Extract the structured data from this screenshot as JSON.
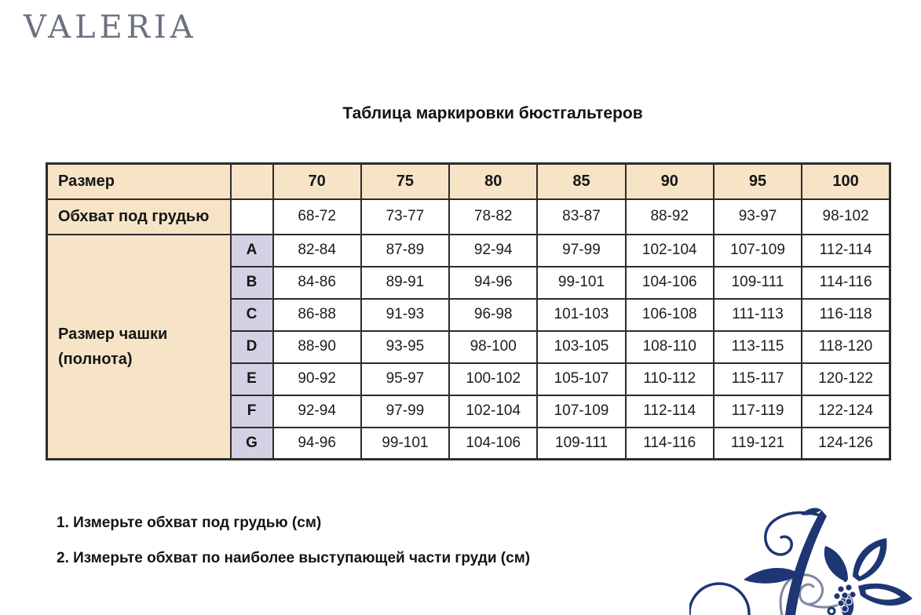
{
  "brand": {
    "logo_text": "VALERIA"
  },
  "title": "Таблица маркировки бюстгальтеров",
  "table": {
    "row_size": {
      "label": "Размер",
      "values": [
        "70",
        "75",
        "80",
        "85",
        "90",
        "95",
        "100"
      ]
    },
    "row_underbust": {
      "label": "Обхват под грудью",
      "values": [
        "68-72",
        "73-77",
        "78-82",
        "83-87",
        "88-92",
        "93-97",
        "98-102"
      ]
    },
    "cup_section": {
      "label_line1": "Размер чашки",
      "label_line2": "(полнота)",
      "rows": [
        {
          "cup": "A",
          "values": [
            "82-84",
            "87-89",
            "92-94",
            "97-99",
            "102-104",
            "107-109",
            "112-114"
          ]
        },
        {
          "cup": "B",
          "values": [
            "84-86",
            "89-91",
            "94-96",
            "99-101",
            "104-106",
            "109-111",
            "114-116"
          ]
        },
        {
          "cup": "C",
          "values": [
            "86-88",
            "91-93",
            "96-98",
            "101-103",
            "106-108",
            "111-113",
            "116-118"
          ]
        },
        {
          "cup": "D",
          "values": [
            "88-90",
            "93-95",
            "98-100",
            "103-105",
            "108-110",
            "113-115",
            "118-120"
          ]
        },
        {
          "cup": "E",
          "values": [
            "90-92",
            "95-97",
            "100-102",
            "105-107",
            "110-112",
            "115-117",
            "120-122"
          ]
        },
        {
          "cup": "F",
          "values": [
            "92-94",
            "97-99",
            "102-104",
            "107-109",
            "112-114",
            "117-119",
            "122-124"
          ]
        },
        {
          "cup": "G",
          "values": [
            "94-96",
            "99-101",
            "104-106",
            "109-111",
            "114-116",
            "119-121",
            "124-126"
          ]
        }
      ]
    }
  },
  "instructions": {
    "items": [
      "1. Измерьте обхват под грудью (см)",
      "2. Измерьте обхват по наиболее выступающей части груди (см)"
    ]
  },
  "icons": {
    "ornament": "floral-flourish-icon"
  },
  "colors": {
    "header_fill": "#F7E3C6",
    "cup_fill": "#D4D1E4",
    "border": "#2C2C2C",
    "ornament_navy": "#1E3673",
    "ornament_gray": "#7F87A2",
    "logo_gray": "#6A7180"
  }
}
